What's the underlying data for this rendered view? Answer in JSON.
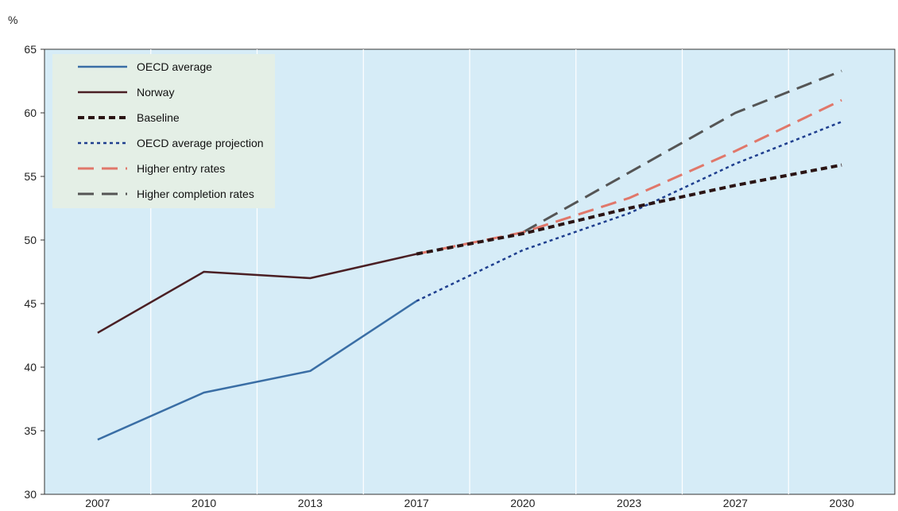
{
  "chart_data": {
    "type": "line",
    "ylabel": "%",
    "ylim": [
      30,
      65
    ],
    "yticks": [
      30,
      35,
      40,
      45,
      50,
      55,
      60,
      65
    ],
    "categories": [
      "2007",
      "2010",
      "2013",
      "2017",
      "2020",
      "2023",
      "2027",
      "2030"
    ],
    "grid": "vertical",
    "legend_position": "top-left",
    "series": [
      {
        "name": "OECD average",
        "style": "solid",
        "color": "#3a6ea5",
        "x": [
          "2007",
          "2010",
          "2013",
          "2017"
        ],
        "values": [
          34.3,
          38.0,
          39.7,
          45.2
        ]
      },
      {
        "name": "Norway",
        "style": "solid",
        "color": "#4a1f24",
        "x": [
          "2007",
          "2010",
          "2013",
          "2017"
        ],
        "values": [
          42.7,
          47.5,
          47.0,
          48.9
        ]
      },
      {
        "name": "Baseline",
        "style": "dotted",
        "color": "#2a1414",
        "x": [
          "2017",
          "2020",
          "2023",
          "2027",
          "2030"
        ],
        "values": [
          48.9,
          50.5,
          52.5,
          54.3,
          55.9
        ]
      },
      {
        "name": "OECD average projection",
        "style": "small-dash",
        "color": "#1f3f8f",
        "x": [
          "2017",
          "2020",
          "2023",
          "2027",
          "2030"
        ],
        "values": [
          45.2,
          49.2,
          52.1,
          56.0,
          59.3
        ]
      },
      {
        "name": "Higher entry rates",
        "style": "long-dash",
        "color": "#e0776a",
        "x": [
          "2017",
          "2020",
          "2023",
          "2027",
          "2030"
        ],
        "values": [
          48.9,
          50.6,
          53.3,
          57.0,
          61.0
        ]
      },
      {
        "name": "Higher completion rates",
        "style": "long-dash",
        "color": "#555555",
        "x": [
          "2020",
          "2023",
          "2027",
          "2030"
        ],
        "values": [
          50.6,
          55.3,
          60.0,
          63.3
        ]
      }
    ]
  }
}
